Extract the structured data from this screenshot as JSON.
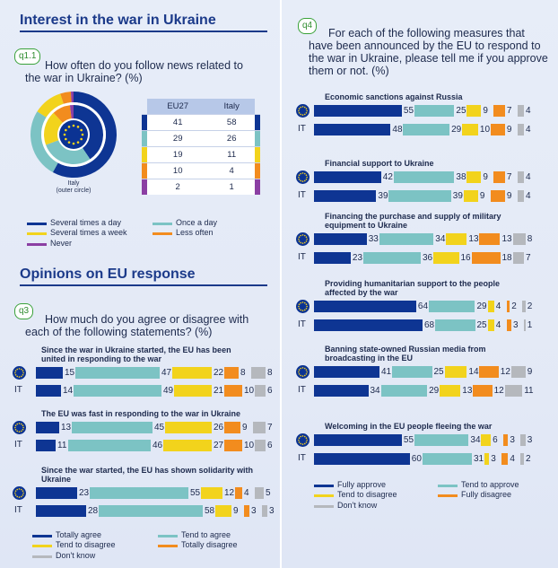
{
  "left": {
    "title1": "Interest in the war in Ukraine",
    "q11": {
      "badge": "q1.1",
      "question": "How often do you follow news related to the war in Ukraine? (%)",
      "headers": [
        "EU27",
        "Italy"
      ],
      "rows": [
        {
          "eu": "41",
          "it": "58"
        },
        {
          "eu": "29",
          "it": "26"
        },
        {
          "eu": "19",
          "it": "11"
        },
        {
          "eu": "10",
          "it": "4"
        },
        {
          "eu": "2",
          "it": "1"
        }
      ],
      "caption_line1": "Italy",
      "caption_line2": "(outer circle)",
      "legend": [
        "Several times a day",
        "Once a day",
        "Several times a week",
        "Less often",
        "Never"
      ]
    },
    "title2": "Opinions on EU response",
    "q3": {
      "badge": "q3",
      "question": "How much do you agree or disagree with each of the following statements? (%)",
      "legend": [
        "Totally agree",
        "Tend to agree",
        "Tend to disagree",
        "Totally disagree",
        "Don't know"
      ]
    }
  },
  "right": {
    "q4": {
      "badge": "q4",
      "question": "For each of the following measures that have been announced by the EU to respond to the war in Ukraine, please tell me if you approve them or not. (%)",
      "legend": [
        "Fully approve",
        "Tend to approve",
        "Tend to disagree",
        "Fully disagree",
        "Don't know"
      ]
    }
  },
  "colors": {
    "c1": "#0e3593",
    "c2": "#7cc3c4",
    "c3": "#f2d31c",
    "c4": "#f28c1e",
    "c5": "#b5b8bd",
    "c6": "#8b3fa3"
  },
  "chart_data": [
    {
      "type": "pie",
      "title": "How often do you follow news related to the war in Ukraine? (%)",
      "categories": [
        "Several times a day",
        "Once a day",
        "Several times a week",
        "Less often",
        "Never"
      ],
      "series": [
        {
          "name": "EU27",
          "values": [
            41,
            29,
            19,
            10,
            2
          ]
        },
        {
          "name": "Italy",
          "values": [
            58,
            26,
            11,
            4,
            1
          ]
        }
      ]
    },
    {
      "type": "bar",
      "title": "How much do you agree or disagree with each of the following statements? (%)",
      "categories": [
        "Totally agree",
        "Tend to agree",
        "Tend to disagree",
        "Totally disagree",
        "Don't know"
      ],
      "items": [
        {
          "label": "Since the war in Ukraine started, the EU has been united in responding to the war",
          "EU": [
            15,
            47,
            22,
            8,
            8
          ],
          "IT": [
            14,
            49,
            21,
            10,
            6
          ]
        },
        {
          "label": "The EU was fast in responding to the war in Ukraine",
          "EU": [
            13,
            45,
            26,
            9,
            7
          ],
          "IT": [
            11,
            46,
            27,
            10,
            6
          ]
        },
        {
          "label": "Since the war started, the EU has shown solidarity with Ukraine",
          "EU": [
            23,
            55,
            12,
            4,
            5
          ],
          "IT": [
            28,
            58,
            9,
            3,
            3
          ]
        }
      ]
    },
    {
      "type": "bar",
      "title": "For each of the following measures that have been announced by the EU to respond to the war in Ukraine, please tell me if you approve them or not. (%)",
      "categories": [
        "Fully approve",
        "Tend to approve",
        "Tend to disagree",
        "Fully disagree",
        "Don't know"
      ],
      "items": [
        {
          "label": "Economic sanctions against Russia",
          "EU": [
            55,
            25,
            9,
            7,
            4
          ],
          "IT": [
            48,
            29,
            10,
            9,
            4
          ]
        },
        {
          "label": "Financial support to Ukraine",
          "EU": [
            42,
            38,
            9,
            7,
            4
          ],
          "IT": [
            39,
            39,
            9,
            9,
            4
          ]
        },
        {
          "label": "Financing the purchase and supply of military equipment to Ukraine",
          "EU": [
            33,
            34,
            13,
            13,
            8
          ],
          "IT": [
            23,
            36,
            16,
            18,
            7
          ]
        },
        {
          "label": "Providing humanitarian support to the people affected by the war",
          "EU": [
            64,
            29,
            4,
            2,
            2
          ],
          "IT": [
            68,
            25,
            4,
            3,
            1
          ]
        },
        {
          "label": "Banning state-owned Russian media from broadcasting in the EU",
          "EU": [
            41,
            25,
            14,
            12,
            9
          ],
          "IT": [
            34,
            29,
            13,
            12,
            11
          ]
        },
        {
          "label": "Welcoming in the EU people fleeing the war",
          "EU": [
            55,
            34,
            6,
            3,
            3
          ],
          "IT": [
            60,
            31,
            3,
            4,
            2
          ]
        }
      ]
    }
  ]
}
